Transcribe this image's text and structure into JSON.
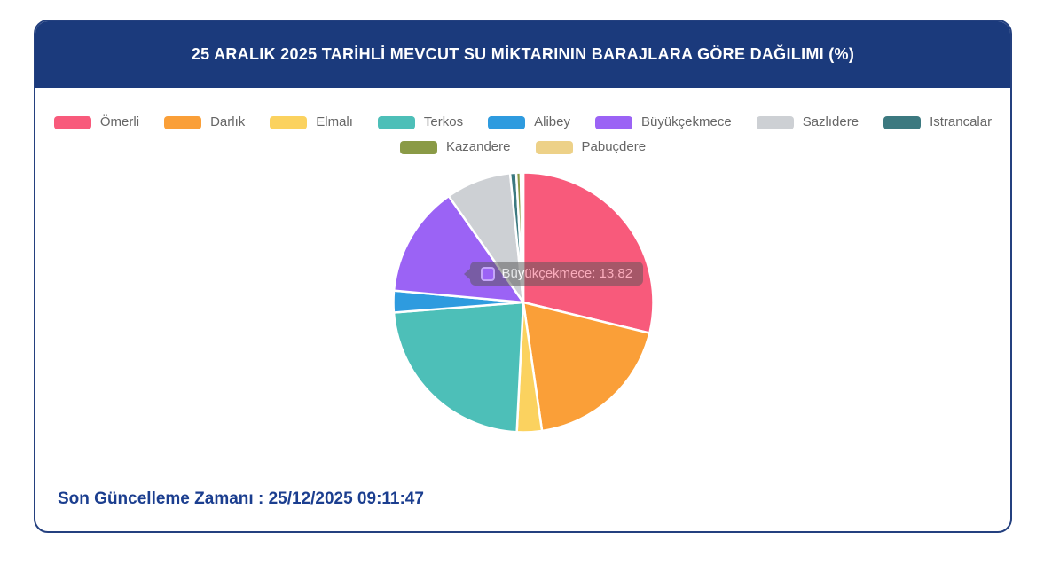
{
  "window": {
    "background": "#FFFFFF"
  },
  "card": {
    "background": "#FFFFFF",
    "border_color": "#24407F"
  },
  "header": {
    "title": "25 ARALIK 2025 TARİHLİ MEVCUT SU MİKTARININ BARAJLARA GÖRE DAĞILIMI (%)",
    "background": "#1B3A7C",
    "text_color": "#FFFFFF"
  },
  "chart_data": {
    "type": "pie",
    "title": "25 ARALIK 2025 TARİHLİ MEVCUT SU MİKTARININ BARAJLARA GÖRE DAĞILIMI (%)",
    "unit": "%",
    "legend_position": "top",
    "legend_wrap_after": 8,
    "start_angle_deg": 0,
    "direction": "clockwise",
    "slice_border_color": "#FFFFFF",
    "series": [
      {
        "name": "Ömerli",
        "value": 28.8,
        "color": "#F85A7B"
      },
      {
        "name": "Darlık",
        "value": 18.9,
        "color": "#FA9F38"
      },
      {
        "name": "Elmalı",
        "value": 3.1,
        "color": "#FBD25F"
      },
      {
        "name": "Terkos",
        "value": 22.95,
        "color": "#4DBFB8"
      },
      {
        "name": "Alibey",
        "value": 2.7,
        "color": "#2E9BDF"
      },
      {
        "name": "Büyükçekmece",
        "value": 13.82,
        "color": "#9B63F5"
      },
      {
        "name": "Sazlıdere",
        "value": 8.1,
        "color": "#CDD0D4"
      },
      {
        "name": "Istrancalar",
        "value": 0.76,
        "color": "#3C7980"
      },
      {
        "name": "Kazandere",
        "value": 0.54,
        "color": "#8A9A46"
      },
      {
        "name": "Pabuçdere",
        "value": 0.33,
        "color": "#EDD188"
      }
    ]
  },
  "tooltip": {
    "visible": true,
    "series": "Büyükçekmece",
    "value": 13.82,
    "value_display": "13,82",
    "text": "Büyükçekmece: 13,82",
    "swatch_color": "#9B63F5"
  },
  "footer": {
    "label": "Son Güncelleme Zamanı",
    "separator": " : ",
    "value": "25/12/2025 09:11:47",
    "text_color": "#1B3E8F"
  }
}
